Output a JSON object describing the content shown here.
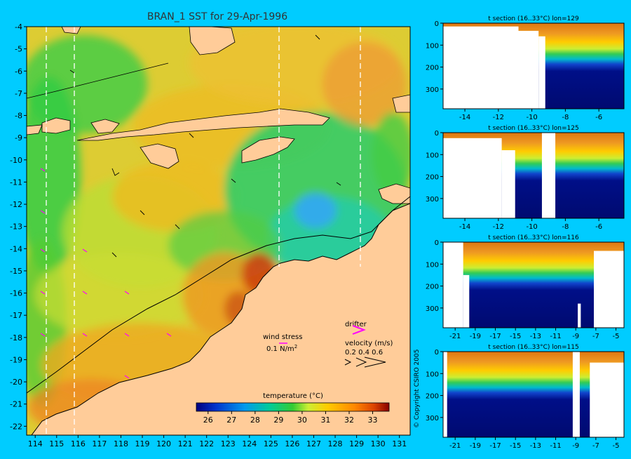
{
  "chart_data": [
    {
      "type": "heatmap",
      "title": "BRAN_1 SST for 29-Apr-1996",
      "xlabel": "",
      "ylabel": "",
      "x_ticks": [
        "114",
        "115",
        "116",
        "117",
        "118",
        "119",
        "120",
        "121",
        "122",
        "123",
        "124",
        "125",
        "126",
        "127",
        "128",
        "129",
        "130",
        "131"
      ],
      "y_ticks": [
        "-4",
        "-5",
        "-6",
        "-7",
        "-8",
        "-9",
        "-10",
        "-11",
        "-12",
        "-13",
        "-14",
        "-15",
        "-16",
        "-17",
        "-18",
        "-19",
        "-20",
        "-21",
        "-22"
      ],
      "xlim": [
        113.6,
        131.5
      ],
      "ylim": [
        -22.4,
        -4
      ],
      "section_lines_lon": [
        114.5,
        115.8,
        125.4,
        129.2
      ],
      "colorbar": {
        "label": "temperature (°C)",
        "ticks": [
          "26",
          "27",
          "28",
          "29",
          "30",
          "31",
          "32",
          "33"
        ],
        "range": [
          25.5,
          33.7
        ]
      },
      "legend": {
        "wind_label": "wind stress",
        "wind_scale": "0.1 N/m",
        "wind_scale_sup": "2",
        "drifter_label": "drifter",
        "velocity_label": "velocity (m/s)",
        "velocity_scale": "0.2 0.4 0.6"
      },
      "colors": {
        "land": "#ffcc99",
        "background": "#00ccff",
        "drifter": "#ff00ff",
        "wind": "#ff00ff"
      }
    },
    {
      "type": "heatmap",
      "title": "t section (16..33°C) lon=129",
      "x_ticks": [
        "-14",
        "-12",
        "-10",
        "-8",
        "-6"
      ],
      "xlim": [
        -15.3,
        -4.5
      ],
      "y_ticks": [
        "0",
        "100",
        "200",
        "300"
      ],
      "ylim": [
        0,
        390
      ]
    },
    {
      "type": "heatmap",
      "title": "t section (16..33°C) lon=125",
      "x_ticks": [
        "-14",
        "-12",
        "-10",
        "-8",
        "-6"
      ],
      "xlim": [
        -15.3,
        -4.5
      ],
      "y_ticks": [
        "0",
        "100",
        "200",
        "300"
      ],
      "ylim": [
        0,
        390
      ]
    },
    {
      "type": "heatmap",
      "title": "t section (16..33°C) lon=116",
      "x_ticks": [
        "-21",
        "-19",
        "-17",
        "-15",
        "-13",
        "-11",
        "-9",
        "-7",
        "-5"
      ],
      "xlim": [
        -22.2,
        -4.2
      ],
      "y_ticks": [
        "0",
        "100",
        "200",
        "300"
      ],
      "ylim": [
        0,
        390
      ]
    },
    {
      "type": "heatmap",
      "title": "t section (16..33°C) lon=115",
      "x_ticks": [
        "-21",
        "-19",
        "-17",
        "-15",
        "-13",
        "-11",
        "-9",
        "-7",
        "-5"
      ],
      "xlim": [
        -22.2,
        -4.2
      ],
      "y_ticks": [
        "0",
        "100",
        "200",
        "300"
      ],
      "ylim": [
        0,
        390
      ]
    }
  ],
  "copyright": "© Copyright CSIRO 2005"
}
